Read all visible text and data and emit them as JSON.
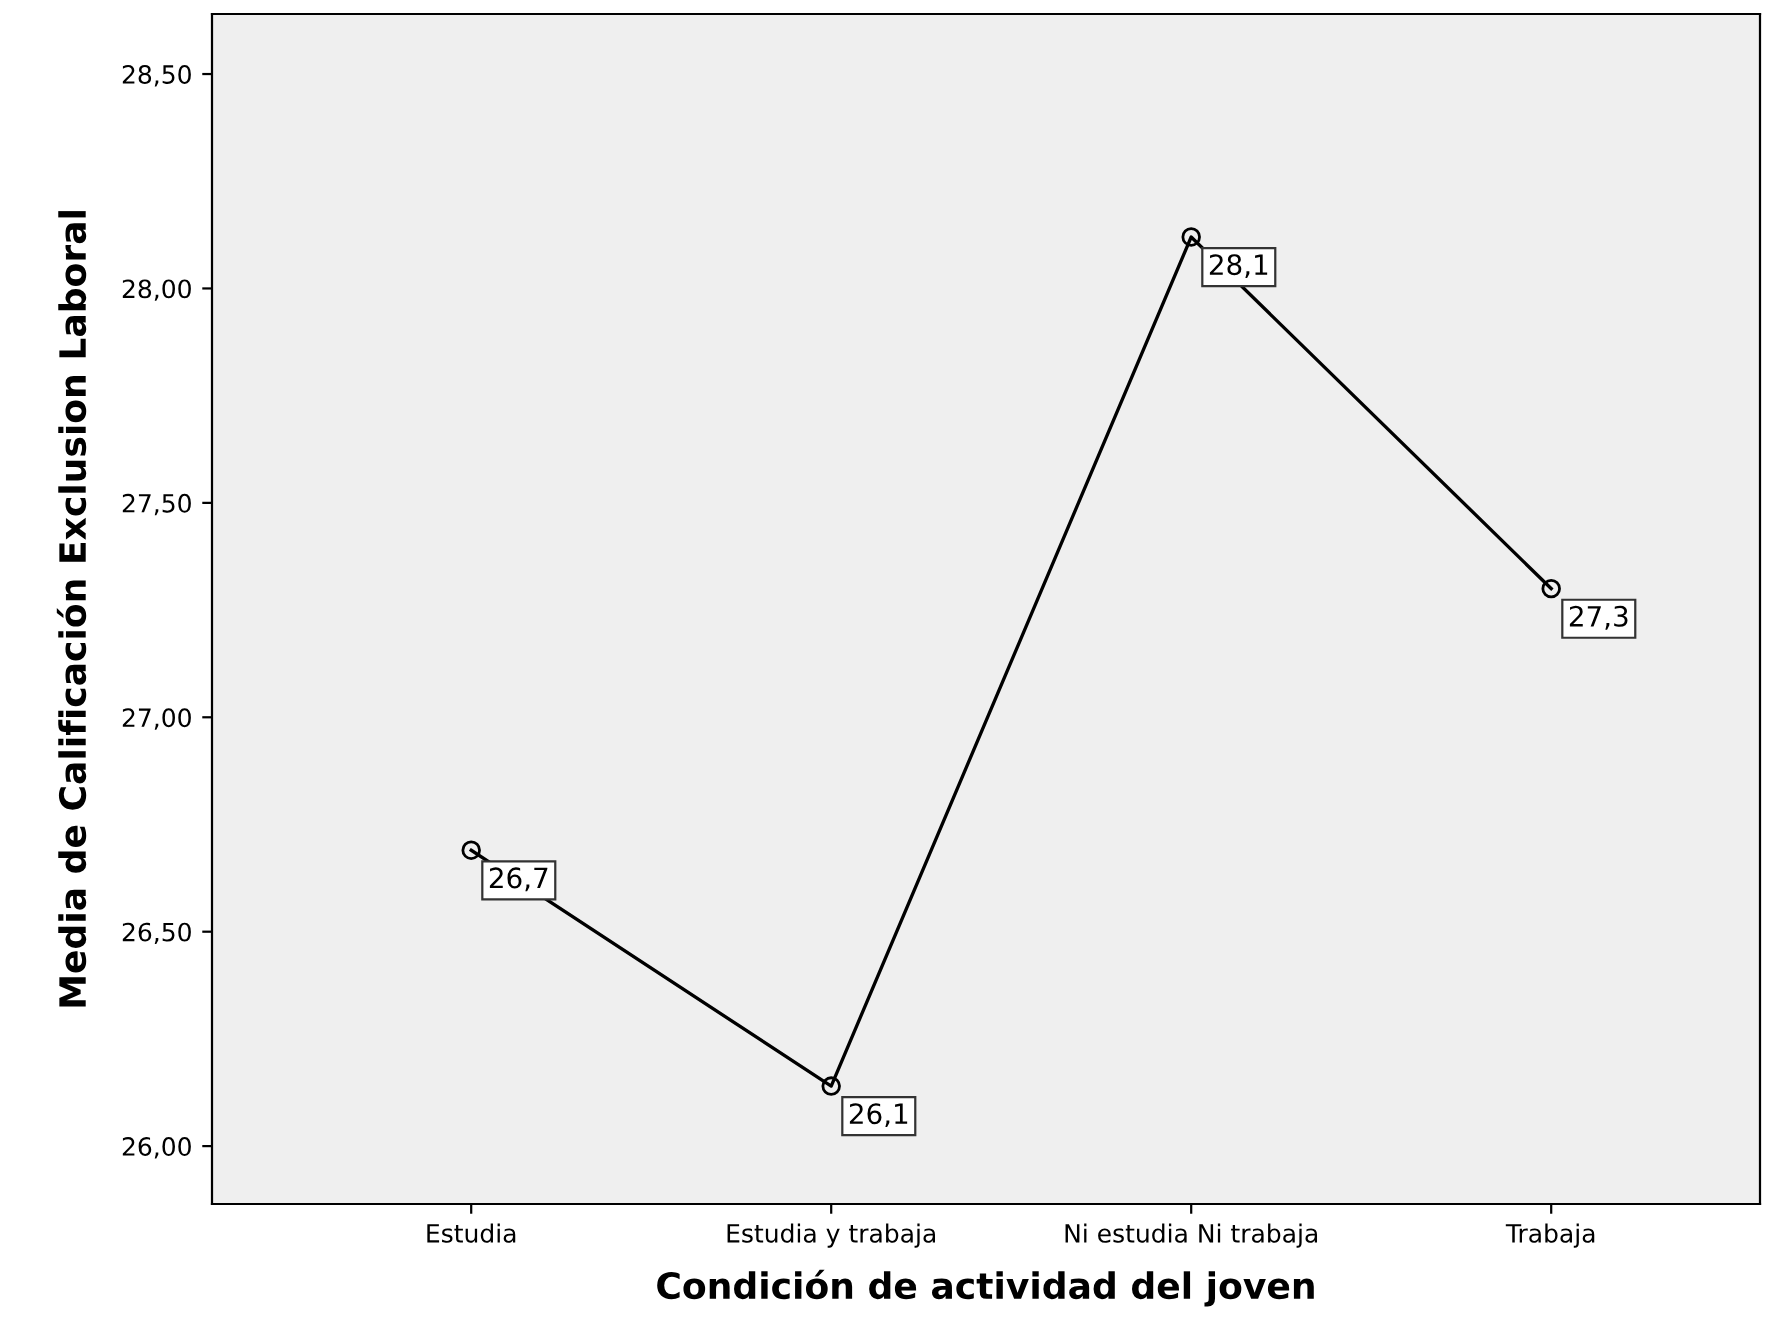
{
  "chart_data": {
    "type": "line",
    "xlabel": "Condición de actividad del joven",
    "ylabel": "Media de Calificación Exclusion Laboral",
    "categories": [
      "Estudia",
      "Estudia y trabaja",
      "Ni estudia Ni trabaja",
      "Trabaja"
    ],
    "series": [
      {
        "color": "#000000",
        "values": [
          26.69,
          26.14,
          28.12,
          27.3
        ],
        "value_labels": [
          "26,7",
          "26,1",
          "28,1",
          "27,3"
        ]
      }
    ],
    "ylim": [
      25.865,
      28.64
    ],
    "yticks": [
      {
        "value": 26,
        "label": "26,00"
      },
      {
        "value": 26.5,
        "label": "26,50"
      },
      {
        "value": 27,
        "label": "27,00"
      },
      {
        "value": 27.5,
        "label": "27,50"
      },
      {
        "value": 28,
        "label": "28,00"
      },
      {
        "value": 28.5,
        "label": "28,50"
      }
    ],
    "marker": "circle",
    "line_style": "solid",
    "grid": false,
    "legend": false
  }
}
